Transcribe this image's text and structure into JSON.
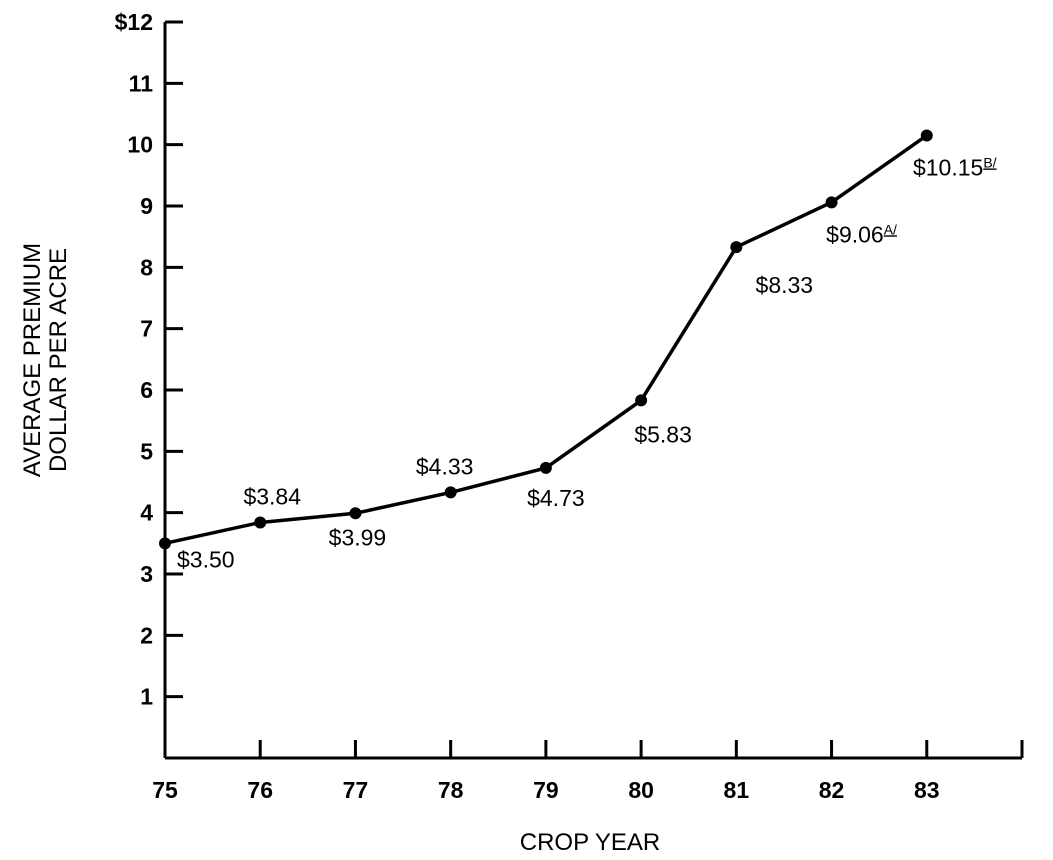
{
  "chart_data": {
    "type": "line",
    "x": [
      75,
      76,
      77,
      78,
      79,
      80,
      81,
      82,
      83
    ],
    "xlabel": "CROP YEAR",
    "ylabel": [
      "AVERAGE PREMIUM",
      "DOLLAR PER ACRE"
    ],
    "xlim": [
      75,
      84
    ],
    "ylim": [
      0,
      12
    ],
    "x_ticks": [
      "75",
      "76",
      "77",
      "78",
      "79",
      "80",
      "81",
      "82",
      "83"
    ],
    "y_ticks": [
      "",
      "1",
      "2",
      "3",
      "4",
      "5",
      "6",
      "7",
      "8",
      "9",
      "10",
      "11",
      "$12"
    ],
    "series": [
      {
        "values": [
          3.5,
          3.84,
          3.99,
          4.33,
          4.73,
          5.83,
          8.33,
          9.06,
          10.15
        ],
        "labels": [
          "$3.50",
          "$3.84",
          "$3.99",
          "$4.33",
          "$4.73",
          "$5.83",
          "$8.33",
          "$9.06",
          "$10.15"
        ],
        "footnotes": [
          "",
          "",
          "",
          "",
          "",
          "",
          "",
          "A/",
          "B/"
        ]
      }
    ],
    "grid": false,
    "legend": "none",
    "line_color": "#000000"
  }
}
